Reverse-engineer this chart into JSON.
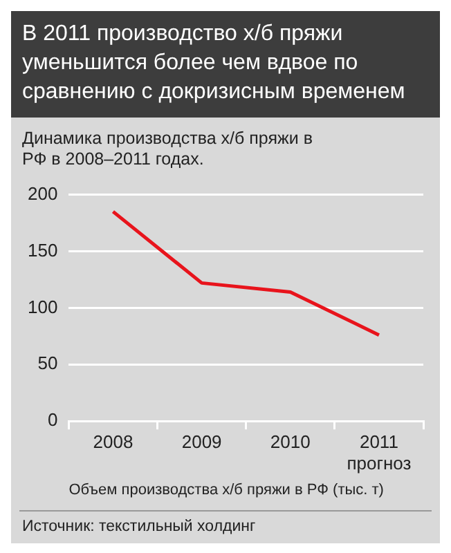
{
  "chart_data": {
    "type": "line",
    "title": "В 2011 производство х/б пряжи уменьшится более чем вдвое по сравнению с докризисным временем",
    "subtitle": "Динамика производства х/б пряжи в РФ в 2008–2011 годах.",
    "xlabel": "Объем производства х/б пряжи в РФ (тыс. т)",
    "categories": [
      "2008",
      "2009",
      "2010",
      "2011\nпрогноз"
    ],
    "series": [
      {
        "color": "#e8141c",
        "values": [
          185,
          122,
          114,
          76
        ]
      }
    ],
    "ylim": [
      0,
      200
    ],
    "yticks": [
      0,
      50,
      100,
      150,
      200
    ],
    "grid": "y",
    "legend": false,
    "marker": "none",
    "annotations": [
      "Источник: текстильный холдинг"
    ]
  }
}
